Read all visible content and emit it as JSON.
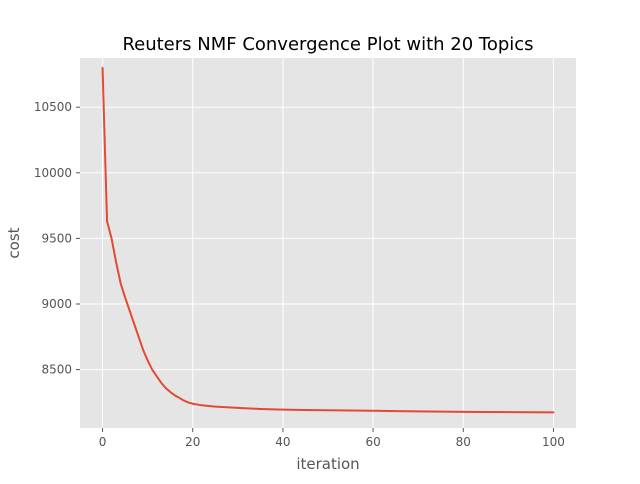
{
  "chart_data": {
    "type": "line",
    "title": "Reuters NMF Convergence Plot with 20 Topics",
    "xlabel": "iteration",
    "ylabel": "cost",
    "xlim": [
      -5,
      105
    ],
    "ylim": [
      8055,
      10875
    ],
    "xticks": [
      0,
      20,
      40,
      60,
      80,
      100
    ],
    "yticks": [
      8500,
      9000,
      9500,
      10000,
      10500
    ],
    "grid": true,
    "colors": {
      "background": "#e5e5e5",
      "grid": "#ffffff",
      "line": "#e24a33",
      "text": "#555555",
      "title": "#000000"
    },
    "series": [
      {
        "x": [
          0,
          1,
          2,
          3,
          4,
          5,
          6,
          7,
          8,
          9,
          10,
          11,
          12,
          13,
          14,
          15,
          16,
          17,
          18,
          19,
          20,
          22,
          25,
          30,
          35,
          40,
          45,
          50,
          55,
          60,
          65,
          70,
          75,
          80,
          85,
          90,
          95,
          100
        ],
        "y": [
          10800,
          9630,
          9500,
          9320,
          9160,
          9050,
          8950,
          8850,
          8750,
          8650,
          8570,
          8500,
          8450,
          8400,
          8360,
          8330,
          8305,
          8285,
          8265,
          8250,
          8240,
          8228,
          8218,
          8208,
          8200,
          8195,
          8192,
          8190,
          8188,
          8186,
          8184,
          8182,
          8180,
          8178,
          8177,
          8176,
          8175,
          8174
        ]
      }
    ]
  }
}
